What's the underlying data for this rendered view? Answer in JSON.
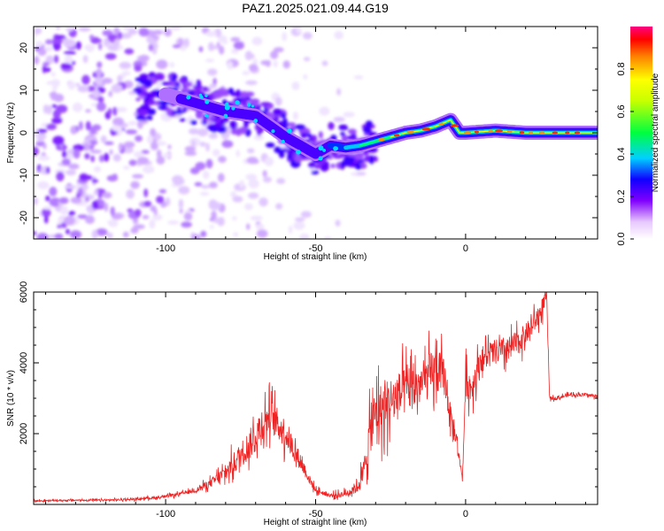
{
  "title": "PAZ1.2025.021.09.44.G19",
  "colors": {
    "snr_line": "#ee2222",
    "spectrogram_colormap": [
      "#ffffff",
      "#e8d8ff",
      "#b070ff",
      "#7000ff",
      "#2a00ff",
      "#00ccff",
      "#00ff80",
      "#ffff00",
      "#ff7f00",
      "#ff0000",
      "#ff0080"
    ]
  },
  "chart_data": [
    {
      "type": "heatmap",
      "name": "spectrogram",
      "xlabel": "Height of straight line (km)",
      "ylabel": "Frequency (Hz)",
      "xlim": [
        -144,
        44
      ],
      "ylim": [
        -25,
        25
      ],
      "x_ticks": [
        -100,
        -50,
        0
      ],
      "y_ticks": [
        20,
        10,
        0,
        -10,
        -20
      ],
      "ridge": {
        "x": [
          -110,
          -100,
          -90,
          -80,
          -70,
          -60,
          -50,
          -45,
          -40,
          -35,
          -30,
          -25,
          -20,
          -15,
          -10,
          -5,
          -4,
          -2,
          0,
          10,
          20,
          30,
          44
        ],
        "y": [
          8,
          9,
          7,
          5,
          4,
          -1,
          -5,
          -3,
          -3.5,
          -3,
          -2,
          -1,
          0,
          0.5,
          1.5,
          3,
          2,
          0,
          0,
          0.5,
          0,
          0,
          0
        ]
      },
      "colorbar": {
        "label": "Normalized spectral amplitude",
        "range": [
          0,
          1
        ],
        "ticks": [
          "0.0",
          "0.2",
          "0.4",
          "0.6",
          "0.8"
        ]
      }
    },
    {
      "type": "line",
      "name": "snr",
      "xlabel": "Height of straight line (km)",
      "ylabel": "SNR (10 * v/v)",
      "xlim": [
        -144,
        44
      ],
      "ylim": [
        0,
        6000
      ],
      "x_ticks": [
        -100,
        -50,
        0
      ],
      "y_ticks": [
        2000,
        4000,
        6000
      ],
      "series": [
        {
          "x": [
            -144,
            -130,
            -120,
            -110,
            -100,
            -95,
            -90,
            -85,
            -80,
            -75,
            -70,
            -68,
            -65,
            -60,
            -55,
            -52,
            -50,
            -45,
            -40,
            -36,
            -34,
            -32,
            -30,
            -25,
            -20,
            -15,
            -10,
            -7,
            -5,
            -3,
            -2,
            -1,
            0,
            2,
            5,
            10,
            15,
            20,
            25,
            26,
            27,
            28,
            30,
            35,
            40,
            44
          ],
          "values": [
            100,
            120,
            120,
            150,
            220,
            300,
            400,
            600,
            900,
            1400,
            1900,
            2300,
            2500,
            2000,
            1200,
            700,
            400,
            250,
            300,
            500,
            900,
            2000,
            2600,
            2900,
            3200,
            3400,
            3800,
            3600,
            2500,
            1800,
            1200,
            800,
            3500,
            3300,
            4100,
            4300,
            4400,
            4800,
            5400,
            5700,
            5900,
            3000,
            3000,
            3100,
            3100,
            3050
          ],
          "noise": [
            40,
            40,
            40,
            50,
            60,
            80,
            100,
            200,
            400,
            600,
            800,
            800,
            800,
            700,
            400,
            200,
            120,
            100,
            150,
            300,
            600,
            1000,
            1200,
            1200,
            1100,
            1000,
            1100,
            900,
            500,
            300,
            200,
            150,
            800,
            700,
            600,
            600,
            600,
            500,
            500,
            400,
            300,
            80,
            80,
            80,
            80,
            80
          ]
        }
      ]
    }
  ]
}
